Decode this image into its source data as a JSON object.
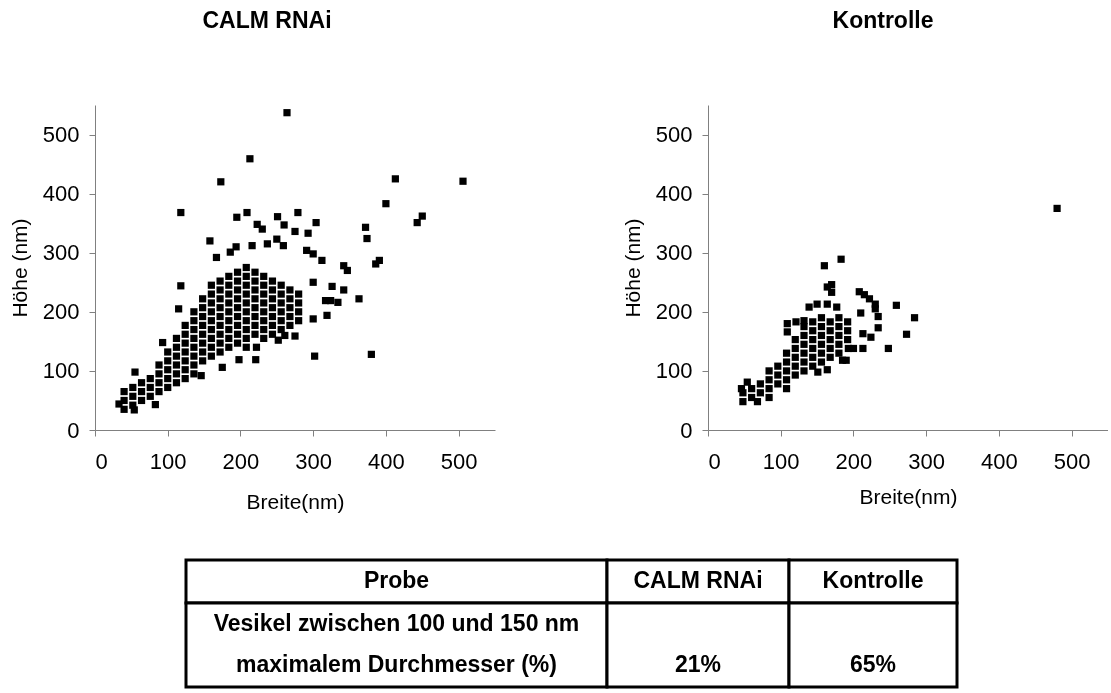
{
  "chart_data": [
    {
      "type": "scatter",
      "title": "CALM RNAi",
      "xlabel": "Breite(nm)",
      "ylabel": "Höhe (nm)",
      "xlim": [
        0,
        550
      ],
      "ylim": [
        0,
        550
      ],
      "xticks": [
        0,
        100,
        200,
        300,
        400,
        500
      ],
      "yticks": [
        0,
        100,
        200,
        300,
        400,
        500
      ],
      "marker": "square",
      "series": [
        {
          "color": "#000000",
          "x": [
            264,
            213,
            173,
            413,
            506,
            400,
            443,
            450,
            118,
            195,
            209,
            279,
            251,
            260,
            223,
            230,
            304,
            275,
            293,
            372,
            374,
            386,
            391,
            380,
            302,
            158,
            194,
            216,
            250,
            259,
            237,
            186,
            167,
            342,
            347,
            342,
            363,
            334,
            319,
            317,
            312,
            291,
            300,
            326,
            324,
            300,
            300,
            275,
            252,
            261,
            221,
            222,
            198,
            175,
            146,
            118,
            115,
            83,
            55,
            33,
            54,
            93,
            40,
            40,
            40,
            52,
            52,
            52,
            64,
            64,
            64,
            76,
            76,
            76,
            88,
            88,
            88,
            88,
            100,
            100,
            100,
            100,
            100,
            112,
            112,
            112,
            112,
            112,
            112,
            124,
            124,
            124,
            124,
            124,
            124,
            124,
            136,
            136,
            136,
            136,
            136,
            136,
            136,
            136,
            148,
            148,
            148,
            148,
            148,
            148,
            148,
            148,
            160,
            160,
            160,
            160,
            160,
            160,
            160,
            160,
            160,
            172,
            172,
            172,
            172,
            172,
            172,
            172,
            172,
            172,
            184,
            184,
            184,
            184,
            184,
            184,
            184,
            184,
            184,
            196,
            196,
            196,
            196,
            196,
            196,
            196,
            196,
            196,
            208,
            208,
            208,
            208,
            208,
            208,
            208,
            208,
            208,
            208,
            220,
            220,
            220,
            220,
            220,
            220,
            220,
            220,
            232,
            232,
            232,
            232,
            232,
            232,
            232,
            232,
            244,
            244,
            244,
            244,
            244,
            244,
            244,
            256,
            256,
            256,
            256,
            256,
            256,
            268,
            268,
            268,
            268,
            268,
            280,
            280,
            280,
            280
          ],
          "values": [
            537,
            459,
            420,
            425,
            421,
            383,
            351,
            362,
            368,
            360,
            368,
            368,
            361,
            347,
            348,
            340,
            351,
            336,
            333,
            343,
            324,
            281,
            287,
            128,
            125,
            320,
            310,
            312,
            323,
            312,
            315,
            301,
            292,
            278,
            270,
            237,
            222,
            216,
            194,
            219,
            287,
            304,
            298,
            243,
            219,
            250,
            188,
            159,
            152,
            160,
            119,
            140,
            119,
            106,
            92,
            244,
            205,
            43,
            98,
            44,
            34,
            148,
            35,
            50,
            65,
            42,
            57,
            72,
            50,
            65,
            80,
            57,
            72,
            87,
            65,
            80,
            95,
            110,
            72,
            87,
            102,
            117,
            132,
            80,
            95,
            110,
            125,
            140,
            155,
            87,
            102,
            117,
            132,
            147,
            162,
            177,
            95,
            110,
            125,
            140,
            155,
            170,
            185,
            200,
            117,
            132,
            147,
            162,
            177,
            192,
            207,
            222,
            125,
            140,
            155,
            170,
            185,
            200,
            215,
            230,
            245,
            132,
            147,
            162,
            177,
            192,
            207,
            222,
            237,
            252,
            140,
            155,
            170,
            185,
            200,
            215,
            230,
            245,
            260,
            147,
            162,
            177,
            192,
            207,
            222,
            237,
            252,
            267,
            140,
            155,
            170,
            185,
            200,
            215,
            230,
            245,
            260,
            275,
            162,
            177,
            192,
            207,
            222,
            237,
            252,
            267,
            155,
            170,
            185,
            200,
            215,
            230,
            245,
            260,
            162,
            177,
            192,
            207,
            222,
            237,
            252,
            170,
            185,
            200,
            215,
            230,
            245,
            177,
            192,
            207,
            222,
            237,
            185,
            200,
            215,
            230
          ]
        }
      ]
    },
    {
      "type": "scatter",
      "title": "Kontrolle",
      "xlabel": "Breite(nm)",
      "ylabel": "Höhe (nm)",
      "xlim": [
        0,
        550
      ],
      "ylim": [
        0,
        550
      ],
      "xticks": [
        0,
        100,
        200,
        300,
        400,
        500
      ],
      "yticks": [
        0,
        100,
        200,
        300,
        400,
        500
      ],
      "marker": "square",
      "series": [
        {
          "color": "#000000",
          "x": [
            480,
            183,
            160,
            164,
            170,
            170,
            208,
            215,
            222,
            230,
            230,
            259,
            284,
            273,
            248,
            234,
            234,
            224,
            210,
            213,
            213,
            193,
            200,
            185,
            190,
            151,
            164,
            139,
            150,
            164,
            177,
            109,
            109,
            121,
            132,
            46,
            54,
            68,
            48,
            48,
            60,
            60,
            72,
            72,
            84,
            84,
            84,
            84,
            96,
            96,
            96,
            108,
            108,
            108,
            108,
            108,
            120,
            120,
            120,
            120,
            120,
            132,
            132,
            132,
            132,
            132,
            132,
            144,
            144,
            144,
            144,
            144,
            144,
            156,
            156,
            156,
            156,
            156,
            156,
            168,
            168,
            168,
            168,
            168,
            180,
            180,
            180,
            180,
            180,
            192,
            192,
            192
          ],
          "values": [
            375,
            289,
            278,
            242,
            246,
            233,
            234,
            229,
            222,
            213,
            205,
            211,
            190,
            162,
            138,
            192,
            173,
            157,
            198,
            163,
            138,
            138,
            138,
            118,
            118,
            98,
            102,
            208,
            213,
            213,
            208,
            180,
            166,
            183,
            185,
            70,
            81,
            48,
            48,
            63,
            55,
            70,
            63,
            78,
            55,
            70,
            85,
            100,
            78,
            93,
            108,
            70,
            85,
            100,
            115,
            130,
            93,
            108,
            123,
            138,
            153,
            100,
            115,
            130,
            145,
            160,
            175,
            108,
            123,
            138,
            153,
            168,
            183,
            115,
            130,
            145,
            160,
            175,
            190,
            123,
            138,
            153,
            168,
            183,
            130,
            145,
            160,
            175,
            190,
            153,
            168,
            183
          ]
        }
      ]
    },
    {
      "type": "other",
      "annotations": [
        "Probe",
        "CALM RNAi",
        "Kontrolle",
        "Vesikel zwischen 100 und 150 nm maximalem Durchmesser (%)",
        "21%",
        "65%"
      ]
    }
  ]
}
